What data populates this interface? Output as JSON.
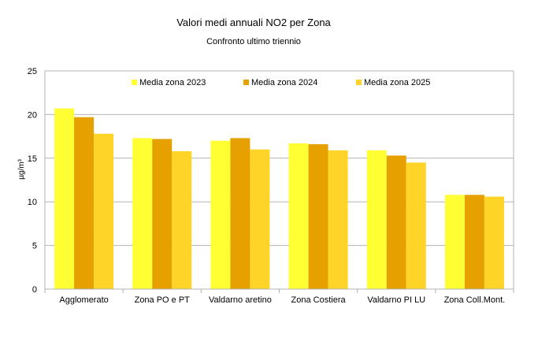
{
  "chart_data": {
    "type": "bar",
    "title": "Valori medi annuali  NO2 per Zona",
    "subtitle": "Confronto ultimo triennio",
    "xlabel": "",
    "ylabel": "µg/m³",
    "ylim": [
      0,
      25
    ],
    "yticks": [
      0,
      5,
      10,
      15,
      20,
      25
    ],
    "grid": true,
    "legend_position": "top",
    "categories": [
      "Agglomerato",
      "Zona PO e PT",
      "Valdarno aretino",
      "Zona Costiera",
      "Valdarno PI LU",
      "Zona Coll.Mont."
    ],
    "series": [
      {
        "name": "Media zona 2023",
        "color": "#ffff33",
        "values": [
          20.7,
          17.3,
          17.0,
          16.7,
          15.9,
          10.8
        ]
      },
      {
        "name": "Media zona 2024",
        "color": "#e6a100",
        "values": [
          19.7,
          17.2,
          17.3,
          16.6,
          15.3,
          10.8
        ]
      },
      {
        "name": "Media zona 2025",
        "color": "#ffd428",
        "values": [
          17.8,
          15.8,
          16.0,
          15.9,
          14.5,
          10.6
        ]
      }
    ]
  }
}
